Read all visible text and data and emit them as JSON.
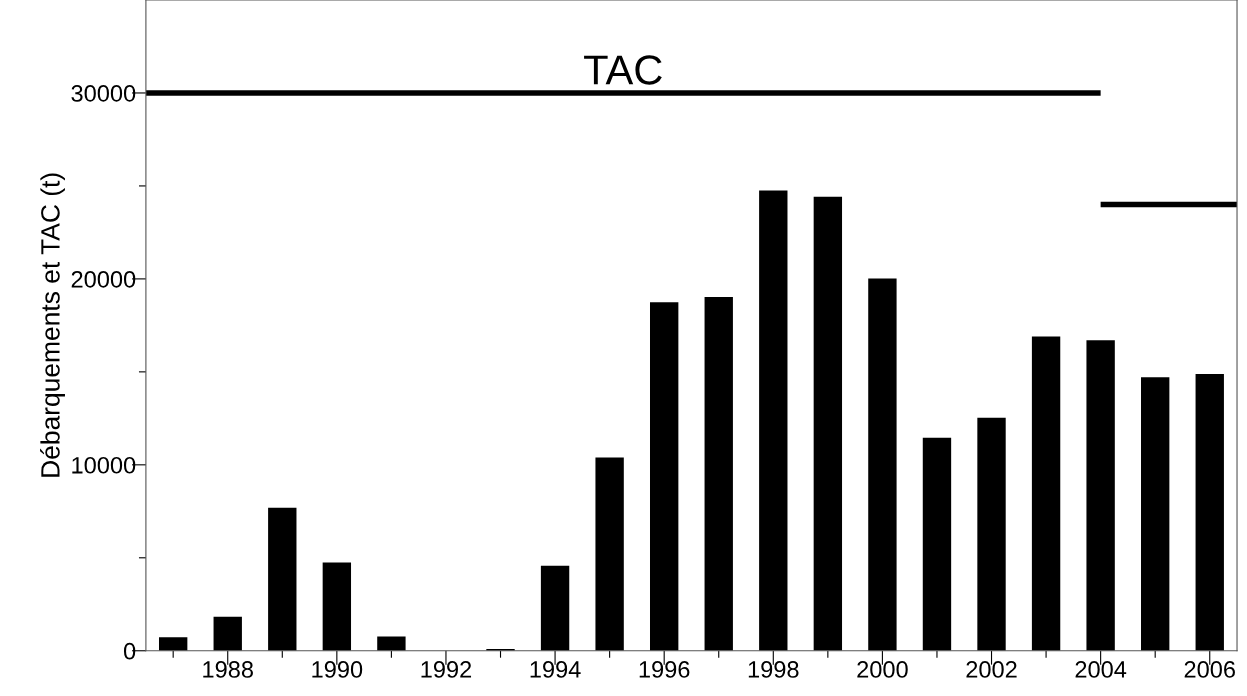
{
  "chart_data": {
    "type": "bar",
    "ylabel": "Débarquements et TAC (t)",
    "x": [
      1987,
      1988,
      1989,
      1990,
      1991,
      1992,
      1993,
      1994,
      1995,
      1996,
      1997,
      1998,
      1999,
      2000,
      2001,
      2002,
      2003,
      2004,
      2005,
      2006
    ],
    "series": [
      {
        "color": "#000000",
        "values": [
          730,
          1830,
          7690,
          4750,
          770,
          0,
          100,
          4570,
          10400,
          18750,
          19020,
          24750,
          24420,
          20020,
          11450,
          12530,
          16900,
          16700,
          14710,
          14890
        ]
      },
      {
        "type": "line",
        "name": "TAC",
        "color": "#000000",
        "x": [
          1986.5,
          2004
        ],
        "values": [
          30000,
          30000
        ]
      },
      {
        "type": "line",
        "color": "#000000",
        "x": [
          2004,
          2006.5
        ],
        "values": [
          24000,
          24000
        ]
      }
    ],
    "xlim": [
      1986.5,
      2006.5
    ],
    "xticks": [
      {
        "value": 1987,
        "label": null
      },
      1988,
      {
        "value": 1989,
        "label": null
      },
      1990,
      {
        "value": 1991,
        "label": null
      },
      1992,
      {
        "value": 1993,
        "label": null
      },
      1994,
      {
        "value": 1995,
        "label": null
      },
      1996,
      {
        "value": 1997,
        "label": null
      },
      1998,
      {
        "value": 1999,
        "label": null
      },
      2000,
      {
        "value": 2001,
        "label": null
      },
      2002,
      {
        "value": 2003,
        "label": null
      },
      2004,
      {
        "value": 2005,
        "label": null
      },
      2006
    ],
    "ylim": [
      0,
      35000
    ],
    "yticks": [
      0,
      {
        "value": 5000,
        "label": null
      },
      10000,
      {
        "value": 15000,
        "label": null
      },
      20000,
      {
        "value": 25000,
        "label": null
      },
      30000
    ],
    "grid": false,
    "legend": false,
    "marker": "none",
    "line_style": "solid"
  }
}
